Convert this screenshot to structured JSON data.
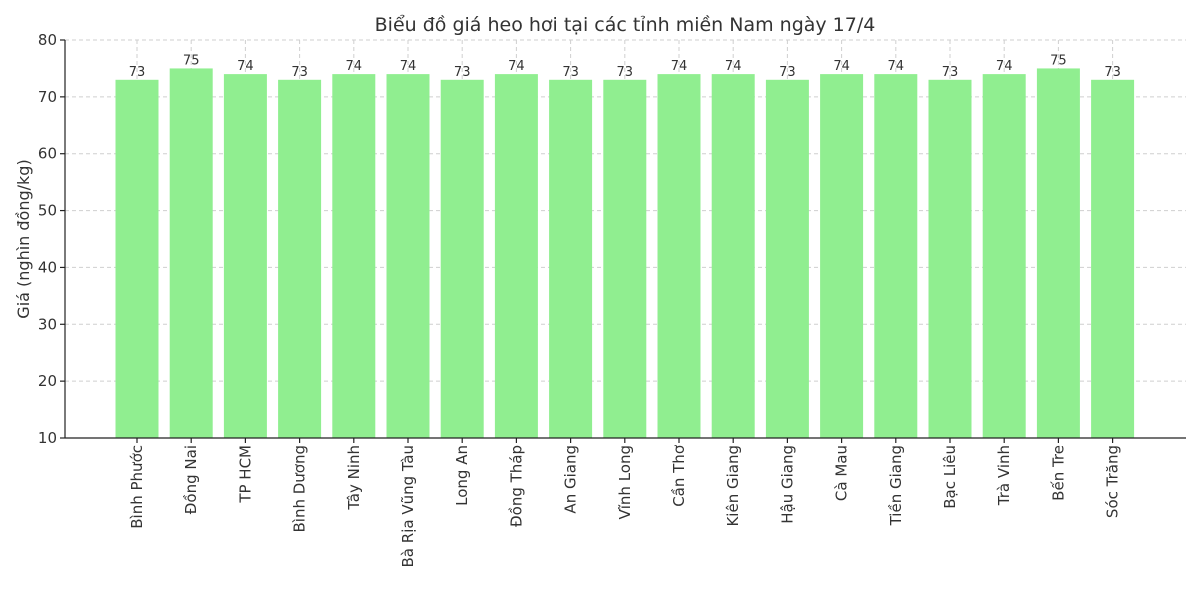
{
  "chart_data": {
    "type": "bar",
    "title": "Biểu đồ giá heo hơi tại các tỉnh miền Nam ngày 17/4",
    "xlabel": "",
    "ylabel": "Giá (nghìn đồng/kg)",
    "ylim": [
      10,
      80
    ],
    "yticks": [
      "10",
      "20",
      "30",
      "40",
      "50",
      "60",
      "70",
      "80"
    ],
    "grid": true,
    "bar_color": "#90EE90",
    "categories": [
      "Bình Phước",
      "Đồng Nai",
      "TP HCM",
      "Bình Dương",
      "Tây Ninh",
      "Bà Rịa  Vũng Tàu",
      "Long An",
      "Đồng Tháp",
      "An Giang",
      "Vĩnh Long",
      "Cần Thơ",
      "Kiên Giang",
      "Hậu Giang",
      "Cà Mau",
      "Tiền Giang",
      "Bạc Liêu",
      "Trà Vinh",
      "Bến Tre",
      "Sóc Trăng"
    ],
    "values": [
      73,
      75,
      74,
      73,
      74,
      74,
      73,
      74,
      73,
      73,
      74,
      74,
      73,
      74,
      74,
      73,
      74,
      75,
      73
    ]
  }
}
